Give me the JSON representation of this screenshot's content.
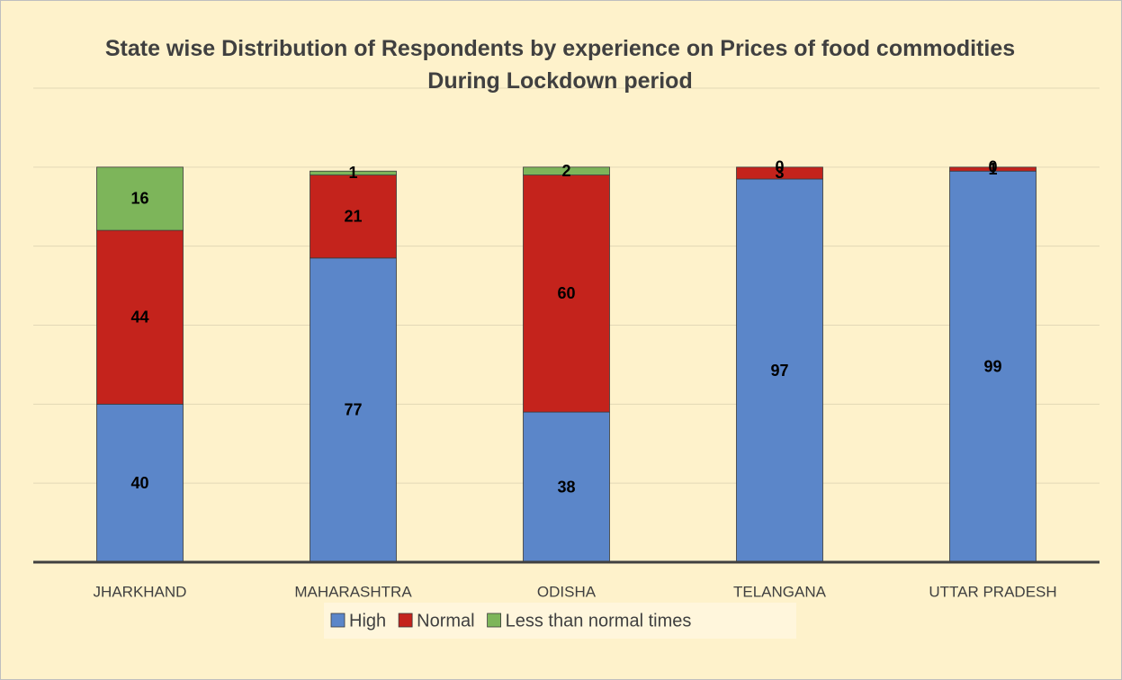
{
  "chart_data": {
    "type": "stacked_bar",
    "title": "State wise Distribution of Respondents by experience on Prices of food commodities During Lockdown period",
    "categories": [
      "JHARKHAND",
      "MAHARASHTRA",
      "ODISHA",
      "TELANGANA",
      "UTTAR PRADESH"
    ],
    "series": [
      {
        "name": "High",
        "color": "#5b86c9",
        "values": [
          40,
          77,
          38,
          97,
          99
        ]
      },
      {
        "name": "Normal",
        "color": "#c4231c",
        "values": [
          44,
          21,
          60,
          3,
          1
        ]
      },
      {
        "name": "Less than normal times",
        "color": "#7db55a",
        "values": [
          16,
          1,
          2,
          0,
          0
        ]
      }
    ],
    "ylim": [
      0,
      120
    ],
    "yticks": [
      0,
      20,
      40,
      60,
      80,
      100,
      120
    ],
    "grid": true,
    "legend": "bottom"
  }
}
